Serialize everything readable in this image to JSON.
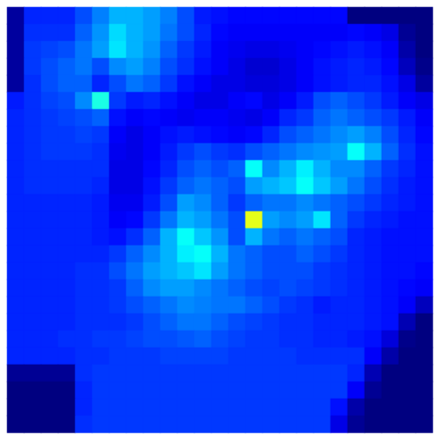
{
  "chart_data": {
    "type": "heatmap",
    "tick_labels": false,
    "color": "jet",
    "color_range": [
      0,
      1
    ],
    "cells": [
      [
        0.03,
        0.16,
        0.16,
        0.16,
        0.2,
        0.25,
        0.3,
        0.3,
        0.28,
        0.25,
        0.2,
        0.15,
        0.14,
        0.13,
        0.13,
        0.13,
        0.13,
        0.13,
        0.13,
        0.13,
        0,
        0,
        0,
        0,
        0
      ],
      [
        0.03,
        0.17,
        0.17,
        0.17,
        0.22,
        0.27,
        0.34,
        0.3,
        0.28,
        0.24,
        0.2,
        0.16,
        0.13,
        0.12,
        0.12,
        0.12,
        0.12,
        0.12,
        0.12,
        0.12,
        0.13,
        0.12,
        0.1,
        0.02,
        0
      ],
      [
        0.03,
        0.18,
        0.19,
        0.2,
        0.24,
        0.28,
        0.35,
        0.3,
        0.27,
        0.22,
        0.18,
        0.15,
        0.12,
        0.11,
        0.1,
        0.1,
        0.11,
        0.12,
        0.13,
        0.14,
        0.15,
        0.14,
        0.12,
        0.04,
        0
      ],
      [
        0.03,
        0.18,
        0.2,
        0.22,
        0.24,
        0.2,
        0.26,
        0.28,
        0.25,
        0.2,
        0.17,
        0.14,
        0.12,
        0.1,
        0.08,
        0.08,
        0.1,
        0.12,
        0.14,
        0.15,
        0.16,
        0.15,
        0.13,
        0.06,
        0.01
      ],
      [
        0.03,
        0.17,
        0.2,
        0.22,
        0.22,
        0.16,
        0.2,
        0.24,
        0.22,
        0.18,
        0.14,
        0.12,
        0.1,
        0.1,
        0.09,
        0.09,
        0.1,
        0.12,
        0.14,
        0.15,
        0.16,
        0.16,
        0.14,
        0.1,
        0.03
      ],
      [
        0.15,
        0.17,
        0.19,
        0.2,
        0.26,
        0.4,
        0.18,
        0.15,
        0.16,
        0.14,
        0.12,
        0.1,
        0.1,
        0.12,
        0.13,
        0.1,
        0.12,
        0.15,
        0.2,
        0.22,
        0.2,
        0.18,
        0.15,
        0.12,
        0.1
      ],
      [
        0.16,
        0.17,
        0.18,
        0.19,
        0.2,
        0.22,
        0.14,
        0.12,
        0.13,
        0.12,
        0.11,
        0.12,
        0.12,
        0.11,
        0.1,
        0.12,
        0.16,
        0.18,
        0.22,
        0.24,
        0.22,
        0.2,
        0.18,
        0.15,
        0.12
      ],
      [
        0.16,
        0.17,
        0.18,
        0.18,
        0.19,
        0.18,
        0.12,
        0.1,
        0.12,
        0.14,
        0.15,
        0.14,
        0.13,
        0.12,
        0.13,
        0.16,
        0.2,
        0.22,
        0.24,
        0.26,
        0.28,
        0.25,
        0.2,
        0.16,
        0.13
      ],
      [
        0.16,
        0.17,
        0.18,
        0.18,
        0.18,
        0.17,
        0.11,
        0.1,
        0.12,
        0.15,
        0.18,
        0.2,
        0.18,
        0.17,
        0.2,
        0.22,
        0.24,
        0.26,
        0.27,
        0.28,
        0.38,
        0.3,
        0.22,
        0.17,
        0.14
      ],
      [
        0.16,
        0.17,
        0.17,
        0.17,
        0.17,
        0.17,
        0.1,
        0.1,
        0.13,
        0.16,
        0.2,
        0.22,
        0.2,
        0.22,
        0.38,
        0.26,
        0.3,
        0.36,
        0.3,
        0.26,
        0.26,
        0.22,
        0.18,
        0.16,
        0.14
      ],
      [
        0.16,
        0.17,
        0.17,
        0.17,
        0.17,
        0.16,
        0.1,
        0.1,
        0.14,
        0.18,
        0.22,
        0.24,
        0.22,
        0.2,
        0.28,
        0.3,
        0.32,
        0.38,
        0.32,
        0.28,
        0.24,
        0.2,
        0.17,
        0.15,
        0.14
      ],
      [
        0.16,
        0.16,
        0.16,
        0.16,
        0.16,
        0.15,
        0.11,
        0.11,
        0.15,
        0.2,
        0.28,
        0.26,
        0.22,
        0.18,
        0.22,
        0.24,
        0.24,
        0.26,
        0.24,
        0.22,
        0.2,
        0.18,
        0.16,
        0.15,
        0.14
      ],
      [
        0.16,
        0.16,
        0.16,
        0.16,
        0.16,
        0.15,
        0.12,
        0.13,
        0.18,
        0.24,
        0.3,
        0.28,
        0.24,
        0.2,
        0.6,
        0.28,
        0.26,
        0.28,
        0.35,
        0.22,
        0.18,
        0.16,
        0.15,
        0.14,
        0.14
      ],
      [
        0.16,
        0.16,
        0.16,
        0.16,
        0.16,
        0.15,
        0.14,
        0.17,
        0.22,
        0.3,
        0.38,
        0.32,
        0.27,
        0.2,
        0.3,
        0.24,
        0.22,
        0.24,
        0.22,
        0.2,
        0.16,
        0.15,
        0.14,
        0.14,
        0.14
      ],
      [
        0.16,
        0.16,
        0.16,
        0.16,
        0.16,
        0.16,
        0.18,
        0.22,
        0.26,
        0.3,
        0.36,
        0.38,
        0.3,
        0.24,
        0.22,
        0.2,
        0.2,
        0.22,
        0.2,
        0.18,
        0.16,
        0.15,
        0.14,
        0.14,
        0.14
      ],
      [
        0.16,
        0.16,
        0.16,
        0.16,
        0.17,
        0.17,
        0.2,
        0.24,
        0.28,
        0.3,
        0.32,
        0.35,
        0.28,
        0.24,
        0.22,
        0.2,
        0.2,
        0.2,
        0.18,
        0.17,
        0.16,
        0.15,
        0.14,
        0.14,
        0.13
      ],
      [
        0.16,
        0.16,
        0.16,
        0.16,
        0.17,
        0.17,
        0.18,
        0.22,
        0.26,
        0.28,
        0.28,
        0.26,
        0.24,
        0.22,
        0.2,
        0.19,
        0.2,
        0.19,
        0.18,
        0.17,
        0.16,
        0.15,
        0.14,
        0.13,
        0.12
      ],
      [
        0.16,
        0.16,
        0.16,
        0.16,
        0.17,
        0.17,
        0.18,
        0.2,
        0.22,
        0.24,
        0.26,
        0.25,
        0.24,
        0.24,
        0.22,
        0.2,
        0.18,
        0.17,
        0.15,
        0.16,
        0.16,
        0.15,
        0.14,
        0.12,
        0.06
      ],
      [
        0.16,
        0.16,
        0.16,
        0.16,
        0.17,
        0.17,
        0.17,
        0.18,
        0.2,
        0.22,
        0.24,
        0.24,
        0.22,
        0.2,
        0.19,
        0.18,
        0.17,
        0.17,
        0.16,
        0.16,
        0.16,
        0.15,
        0.14,
        0.05,
        0
      ],
      [
        0.16,
        0.16,
        0.16,
        0.17,
        0.17,
        0.18,
        0.18,
        0.19,
        0.2,
        0.2,
        0.21,
        0.22,
        0.2,
        0.19,
        0.18,
        0.18,
        0.17,
        0.17,
        0.16,
        0.16,
        0.15,
        0.14,
        0.09,
        0.01,
        0
      ],
      [
        0.16,
        0.16,
        0.16,
        0.16,
        0.17,
        0.17,
        0.18,
        0.18,
        0.18,
        0.19,
        0.19,
        0.19,
        0.19,
        0.18,
        0.18,
        0.18,
        0.18,
        0.17,
        0.17,
        0.17,
        0.17,
        0.12,
        0.04,
        0,
        0
      ],
      [
        0.02,
        0.02,
        0.02,
        0.02,
        0.17,
        0.18,
        0.18,
        0.18,
        0.18,
        0.18,
        0.18,
        0.18,
        0.18,
        0.18,
        0.18,
        0.18,
        0.18,
        0.18,
        0.18,
        0.18,
        0.16,
        0.05,
        0,
        0,
        0
      ],
      [
        0,
        0,
        0,
        0,
        0.16,
        0.18,
        0.18,
        0.18,
        0.18,
        0.18,
        0.18,
        0.18,
        0.18,
        0.18,
        0.18,
        0.18,
        0.18,
        0.18,
        0.18,
        0.18,
        0.12,
        0.02,
        0,
        0,
        0
      ],
      [
        0,
        0,
        0,
        0,
        0.16,
        0.18,
        0.18,
        0.18,
        0.18,
        0.18,
        0.18,
        0.18,
        0.18,
        0.18,
        0.18,
        0.18,
        0.18,
        0.18,
        0.18,
        0.14,
        0.04,
        0,
        0,
        0,
        0
      ],
      [
        0,
        0,
        0,
        0,
        0.17,
        0.18,
        0.18,
        0.18,
        0.18,
        0.18,
        0.18,
        0.18,
        0.18,
        0.18,
        0.18,
        0.18,
        0.18,
        0.18,
        0.18,
        0.1,
        0.02,
        0,
        0,
        0,
        0
      ]
    ]
  }
}
